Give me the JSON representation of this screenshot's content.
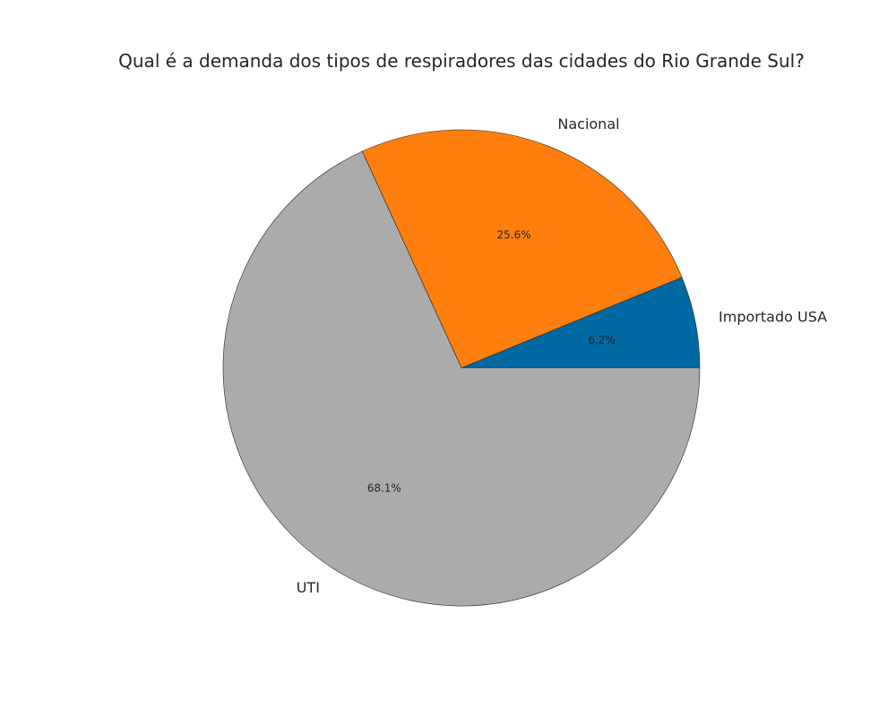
{
  "chart_data": {
    "type": "pie",
    "title": "Qual é a demanda dos tipos de respiradores das cidades do Rio Grande Sul?",
    "categories": [
      "Importado USA",
      "Nacional",
      "UTI"
    ],
    "values": [
      6.2,
      25.6,
      68.1
    ],
    "value_labels": [
      "6.2%",
      "25.6%",
      "68.1%"
    ],
    "colors": [
      "#0068a3",
      "#fe7f0e",
      "#ababab"
    ],
    "start_angle_deg": 0,
    "direction": "counterclockwise",
    "legend": "none"
  }
}
